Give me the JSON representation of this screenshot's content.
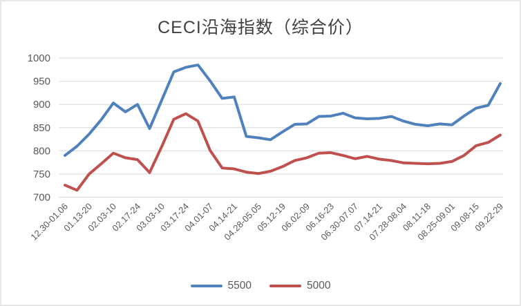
{
  "colors": {
    "series_5500": "#4F81BD",
    "series_5000": "#C0504D",
    "gridline": "#D9D9D9",
    "axis_label": "#595959",
    "title": "#404040",
    "frame": "#E7E7E7",
    "background": "#FFFFFF"
  },
  "chart_data": {
    "type": "line",
    "title": "CECI沿海指数（综合价）",
    "ylim": [
      700,
      1000
    ],
    "y_ticks": [
      700,
      750,
      800,
      850,
      900,
      950,
      1000
    ],
    "grid": true,
    "legend_position": "bottom",
    "x_label_stride": 2,
    "x_tick_labels": [
      "12.30-01.06",
      "01.13-20",
      "02.03-10",
      "02.17-24",
      "03.03-10",
      "03.17-24",
      "04.01-07",
      "04.14-21",
      "04.28-05.05",
      "05.12-19",
      "06.02-09",
      "06.16-23",
      "06.30-07.07",
      "07.14-21",
      "07.28-08.04",
      "08.11-18",
      "08.25-09.01",
      "09.08-15",
      "09.22-29"
    ],
    "series": [
      {
        "name": "5500",
        "color": "#4F81BD",
        "values": [
          790,
          810,
          836,
          867,
          903,
          884,
          900,
          848,
          909,
          970,
          980,
          985,
          951,
          913,
          916,
          831,
          828,
          824,
          841,
          857,
          858,
          874,
          875,
          881,
          871,
          869,
          870,
          874,
          864,
          857,
          854,
          858,
          856,
          875,
          892,
          898,
          945
        ]
      },
      {
        "name": "5000",
        "color": "#C0504D",
        "values": [
          726,
          715,
          750,
          772,
          795,
          785,
          781,
          753,
          809,
          868,
          880,
          864,
          801,
          763,
          761,
          754,
          751,
          756,
          766,
          779,
          785,
          795,
          796,
          790,
          783,
          788,
          782,
          779,
          774,
          773,
          772,
          773,
          777,
          790,
          811,
          818,
          834
        ]
      }
    ]
  }
}
